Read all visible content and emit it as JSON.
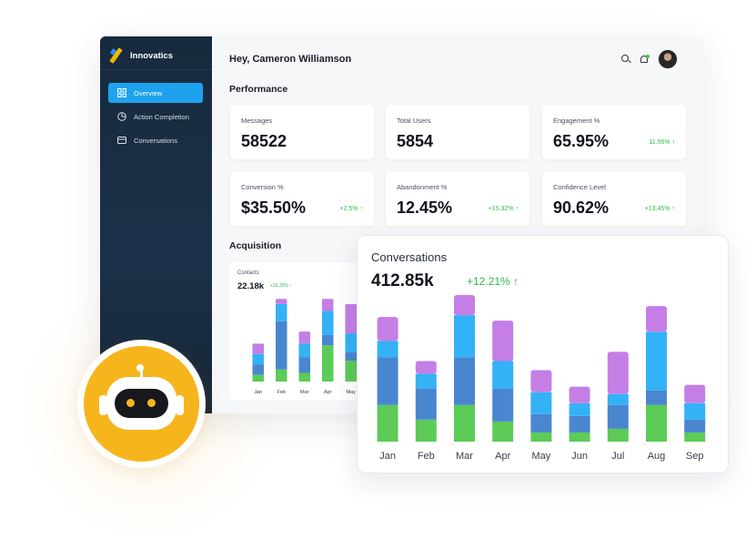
{
  "app": {
    "brand": "Innovatics",
    "greeting": "Hey, Cameron Williamson"
  },
  "sidebar": {
    "items": [
      {
        "label": "Overview",
        "icon": "grid-icon",
        "active": true
      },
      {
        "label": "Action Completion",
        "icon": "pie-chart-icon",
        "active": false
      },
      {
        "label": "Conversations",
        "icon": "card-icon",
        "active": false
      }
    ]
  },
  "header": {
    "icons": [
      "search-icon",
      "bell-icon",
      "avatar"
    ]
  },
  "performance": {
    "title": "Performance",
    "cards": [
      {
        "label": "Messages",
        "value": "58522",
        "delta": ""
      },
      {
        "label": "Total Users",
        "value": "5854",
        "delta": ""
      },
      {
        "label": "Engagement %",
        "value": "65.95%",
        "delta": "11.56% ↑"
      },
      {
        "label": "Conversion %",
        "value": "$35.50%",
        "delta": "+2.5% ↑"
      },
      {
        "label": "Abandonment %",
        "value": "12.45%",
        "delta": "+15.32% ↑"
      },
      {
        "label": "Confidence Level",
        "value": "90.62%",
        "delta": "+13.45% ↑"
      }
    ]
  },
  "acquisition": {
    "title": "Acquisition",
    "contacts": {
      "label": "Contacts",
      "value": "22.18k",
      "delta": "+15.32% ↑"
    }
  },
  "colors": {
    "green": "#5ccb57",
    "blue": "#4a86cf",
    "cyan": "#33b2f5",
    "purple": "#c57ee6",
    "accent": "#1ea2ee",
    "delta": "#2bb84a"
  },
  "conversations": {
    "title": "Conversations",
    "value": "412.85k",
    "delta": "+12.21% ↑"
  },
  "chart_data": [
    {
      "type": "bar",
      "stacked": true,
      "title": "Contacts",
      "categories": [
        "Jan",
        "Feb",
        "Mar",
        "Apr",
        "May"
      ],
      "series": [
        {
          "values": [
            8,
            14,
            10,
            42,
            24
          ]
        },
        {
          "values": [
            12,
            56,
            18,
            12,
            10
          ]
        },
        {
          "values": [
            12,
            20,
            16,
            28,
            22
          ]
        },
        {
          "values": [
            12,
            6,
            14,
            14,
            34
          ]
        }
      ],
      "ylim": [
        0,
        110
      ]
    },
    {
      "type": "bar",
      "stacked": true,
      "title": "Conversations",
      "categories": [
        "Jan",
        "Feb",
        "Mar",
        "Apr",
        "May",
        "Jun",
        "Jul",
        "Aug",
        "Sep"
      ],
      "series": [
        {
          "values": [
            40,
            24,
            40,
            22,
            10,
            10,
            14,
            40,
            10
          ]
        },
        {
          "values": [
            52,
            34,
            52,
            36,
            20,
            18,
            26,
            16,
            14
          ]
        },
        {
          "values": [
            18,
            16,
            46,
            30,
            24,
            14,
            12,
            64,
            18
          ]
        },
        {
          "values": [
            26,
            14,
            22,
            44,
            24,
            18,
            46,
            28,
            20
          ]
        }
      ],
      "ylim": [
        0,
        160
      ]
    }
  ]
}
